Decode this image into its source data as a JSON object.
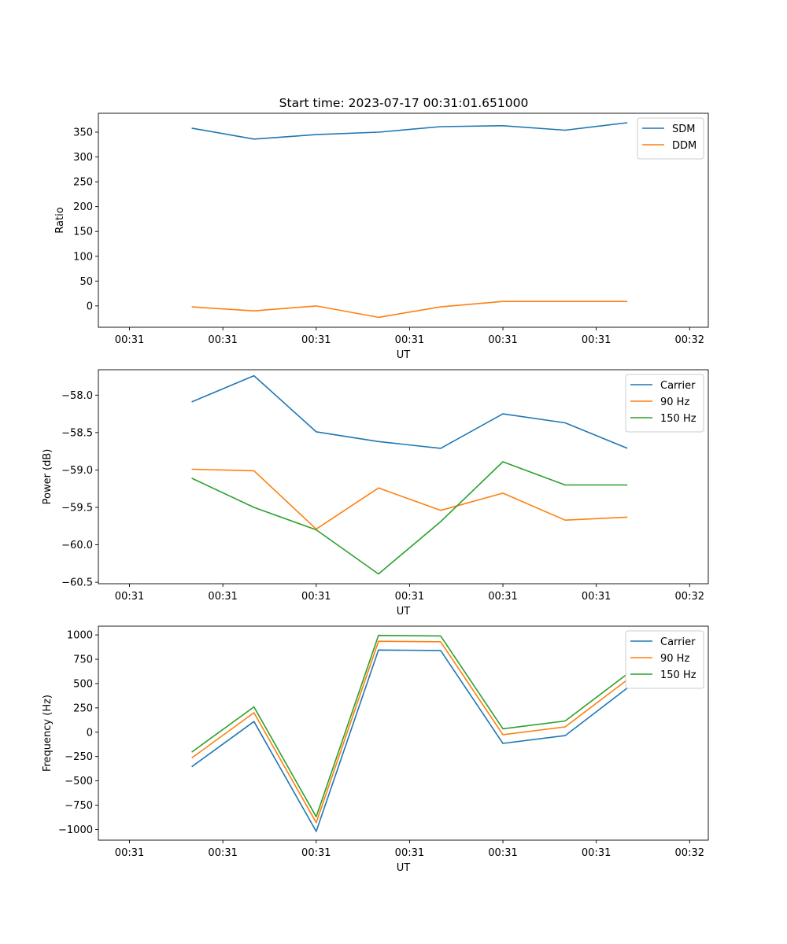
{
  "figure_title": "Start time: 2023-07-17 00:31:01.651000",
  "chart_data": [
    {
      "type": "line",
      "title": "Start time: 2023-07-17 00:31:01.651000",
      "xlabel": "UT",
      "ylabel": "Ratio",
      "x": [
        1,
        2,
        3,
        4,
        5,
        6,
        7,
        8
      ],
      "xlim": [
        -0.5,
        9.3
      ],
      "x_ticks": [
        0,
        1.5,
        3,
        4.5,
        6,
        7.5,
        9
      ],
      "x_tick_labels": [
        "00:31",
        "00:31",
        "00:31",
        "00:31",
        "00:31",
        "00:31",
        "00:32"
      ],
      "ylim": [
        -43,
        388
      ],
      "y_ticks": [
        0,
        50,
        100,
        150,
        200,
        250,
        300,
        350
      ],
      "y_tick_labels": [
        "0",
        "50",
        "100",
        "150",
        "200",
        "250",
        "300",
        "350"
      ],
      "legend_position": "top-right",
      "series": [
        {
          "name": "SDM",
          "color": "#1f77b4",
          "values": [
            358,
            336,
            345,
            350,
            361,
            363,
            354,
            369
          ]
        },
        {
          "name": "DDM",
          "color": "#ff7f0e",
          "values": [
            -2,
            -10,
            0,
            -23,
            -2,
            9,
            9,
            9
          ]
        }
      ]
    },
    {
      "type": "line",
      "xlabel": "UT",
      "ylabel": "Power (dB)",
      "x": [
        1,
        2,
        3,
        4,
        5,
        6,
        7,
        8
      ],
      "xlim": [
        -0.5,
        9.3
      ],
      "x_ticks": [
        0,
        1.5,
        3,
        4.5,
        6,
        7.5,
        9
      ],
      "x_tick_labels": [
        "00:31",
        "00:31",
        "00:31",
        "00:31",
        "00:31",
        "00:31",
        "00:32"
      ],
      "ylim": [
        -60.52,
        -57.66
      ],
      "y_ticks": [
        -60.5,
        -60.0,
        -59.5,
        -59.0,
        -58.5,
        -58.0
      ],
      "y_tick_labels": [
        "−60.5",
        "−60.0",
        "−59.5",
        "−59.0",
        "−58.5",
        "−58.0"
      ],
      "legend_position": "top-right",
      "series": [
        {
          "name": "Carrier",
          "color": "#1f77b4",
          "values": [
            -58.09,
            -57.74,
            -58.49,
            -58.62,
            -58.71,
            -58.25,
            -58.37,
            -58.71
          ]
        },
        {
          "name": "90 Hz",
          "color": "#ff7f0e",
          "values": [
            -58.99,
            -59.01,
            -59.79,
            -59.24,
            -59.54,
            -59.31,
            -59.67,
            -59.63
          ]
        },
        {
          "name": "150 Hz",
          "color": "#2ca02c",
          "values": [
            -59.11,
            -59.5,
            -59.8,
            -60.39,
            -59.69,
            -58.89,
            -59.2,
            -59.2
          ]
        }
      ]
    },
    {
      "type": "line",
      "xlabel": "UT",
      "ylabel": "Frequency (Hz)",
      "x": [
        1,
        2,
        3,
        4,
        5,
        6,
        7,
        8
      ],
      "xlim": [
        -0.5,
        9.3
      ],
      "x_ticks": [
        0,
        1.5,
        3,
        4.5,
        6,
        7.5,
        9
      ],
      "x_tick_labels": [
        "00:31",
        "00:31",
        "00:31",
        "00:31",
        "00:31",
        "00:31",
        "00:32"
      ],
      "ylim": [
        -1110,
        1090
      ],
      "y_ticks": [
        -1000,
        -750,
        -500,
        -250,
        0,
        250,
        500,
        750,
        1000
      ],
      "y_tick_labels": [
        "−1000",
        "−750",
        "−500",
        "−250",
        "0",
        "250",
        "500",
        "750",
        "1000"
      ],
      "legend_position": "top-right",
      "series": [
        {
          "name": "Carrier",
          "color": "#1f77b4",
          "values": [
            -355,
            110,
            -1020,
            845,
            840,
            -115,
            -35,
            455
          ]
        },
        {
          "name": "90 Hz",
          "color": "#ff7f0e",
          "values": [
            -265,
            200,
            -930,
            935,
            930,
            -25,
            55,
            540
          ]
        },
        {
          "name": "150 Hz",
          "color": "#2ca02c",
          "values": [
            -205,
            260,
            -870,
            995,
            990,
            35,
            115,
            600
          ]
        }
      ]
    }
  ]
}
